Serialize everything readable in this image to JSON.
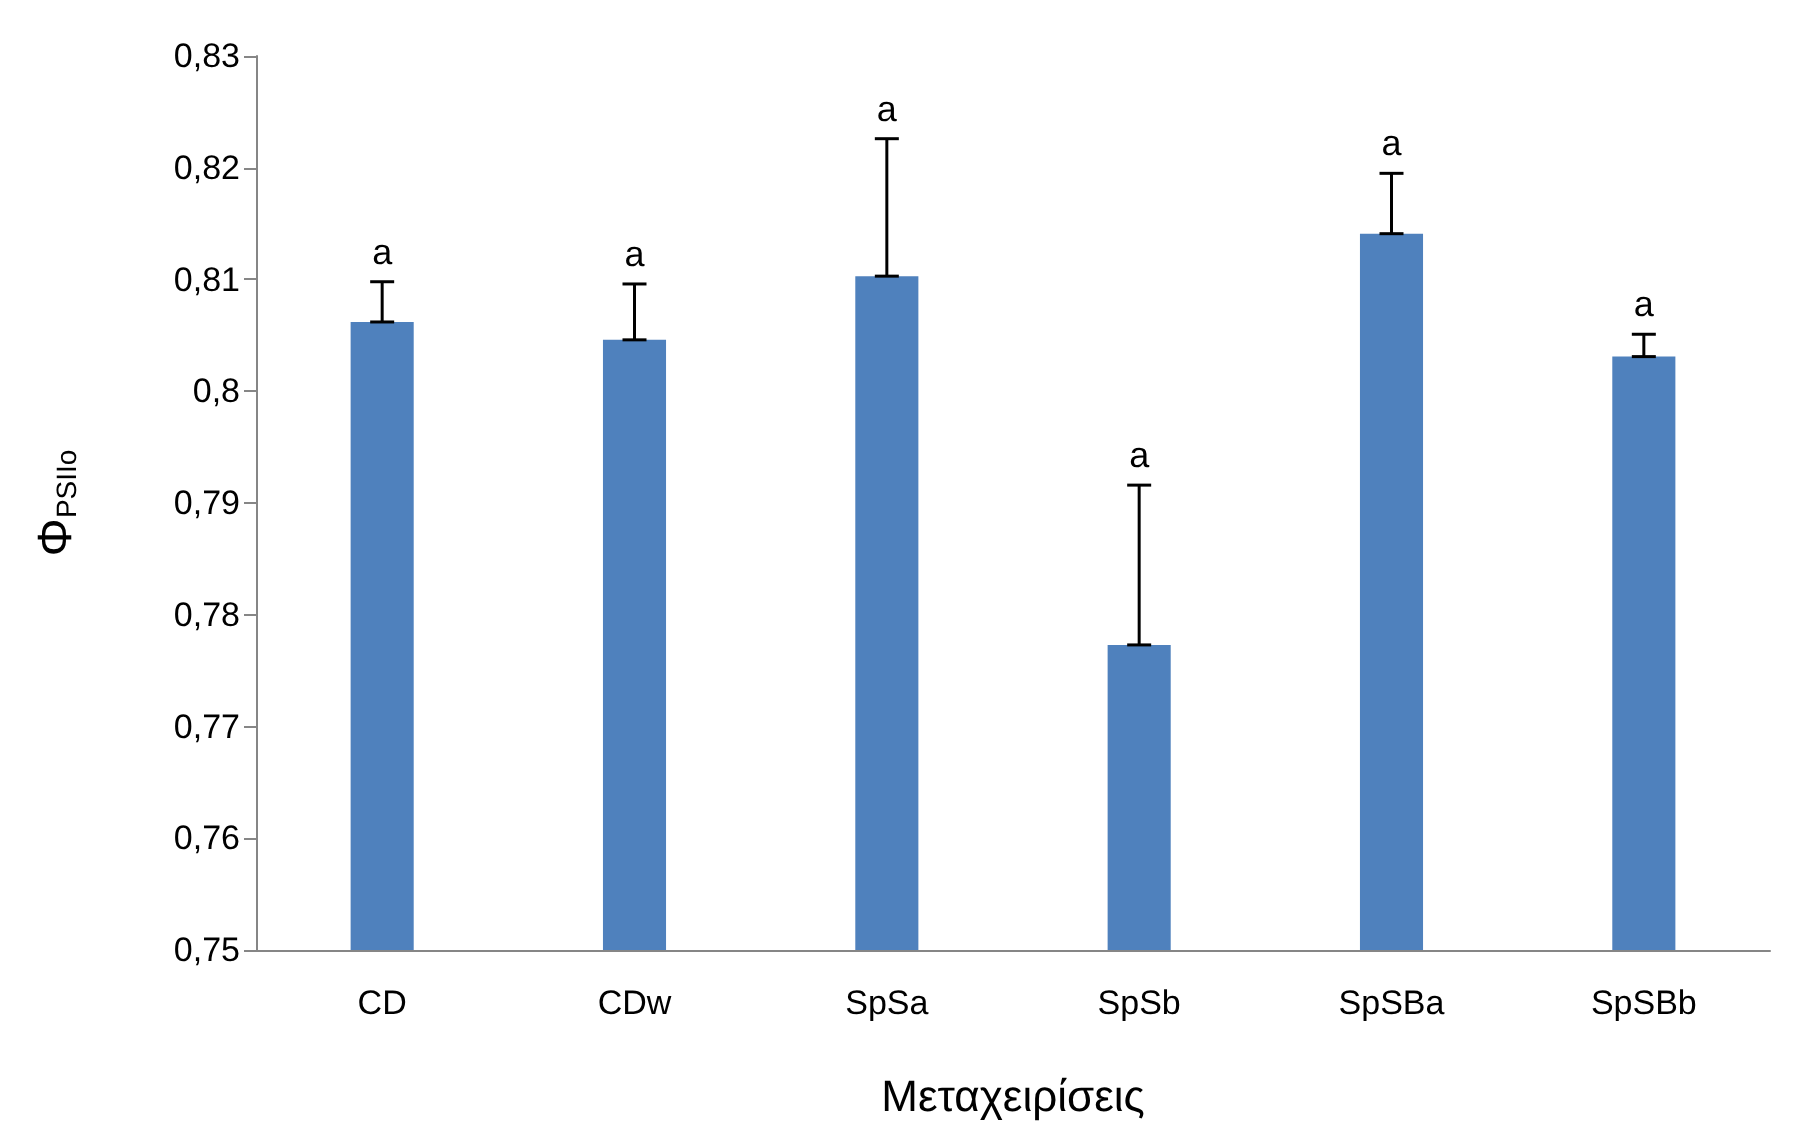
{
  "chart_data": {
    "type": "bar",
    "xlabel": "Μεταχειρίσεις",
    "ylabel": "Φ$_{PSIIo}$",
    "categories": [
      "CD",
      "CDw",
      "SpSa",
      "SpSb",
      "SpSBa",
      "SpSBb"
    ],
    "values": [
      0.8062,
      0.8046,
      0.8103,
      0.7773,
      0.8141,
      0.8031
    ],
    "errors": [
      [
        0.8062,
        0.8098
      ],
      [
        0.8046,
        0.8096
      ],
      [
        0.8103,
        0.8226
      ],
      [
        0.7773,
        0.7916
      ],
      [
        0.8141,
        0.8195
      ],
      [
        0.8031,
        0.8051
      ]
    ],
    "color": "#4f81bd",
    "ylim": [
      0.75,
      0.83
    ],
    "yticks": [
      {
        "value": 0.75,
        "label": "0,75"
      },
      {
        "value": 0.76,
        "label": "0,76"
      },
      {
        "value": 0.77,
        "label": "0,77"
      },
      {
        "value": 0.78,
        "label": "0,78"
      },
      {
        "value": 0.79,
        "label": "0,79"
      },
      {
        "value": 0.8,
        "label": "0,8"
      },
      {
        "value": 0.81,
        "label": "0,81"
      },
      {
        "value": 0.82,
        "label": "0,82"
      },
      {
        "value": 0.83,
        "label": "0,83"
      }
    ],
    "annotations": [
      {
        "text": "a",
        "x": "CD",
        "y": 0.8098
      },
      {
        "text": "a",
        "x": "CDw",
        "y": 0.8096
      },
      {
        "text": "a",
        "x": "SpSa",
        "y": 0.8226
      },
      {
        "text": "a",
        "x": "SpSb",
        "y": 0.7916
      },
      {
        "text": "a",
        "x": "SpSBa",
        "y": 0.8195
      },
      {
        "text": "a",
        "x": "SpSBb",
        "y": 0.8051
      }
    ],
    "grid": false
  }
}
